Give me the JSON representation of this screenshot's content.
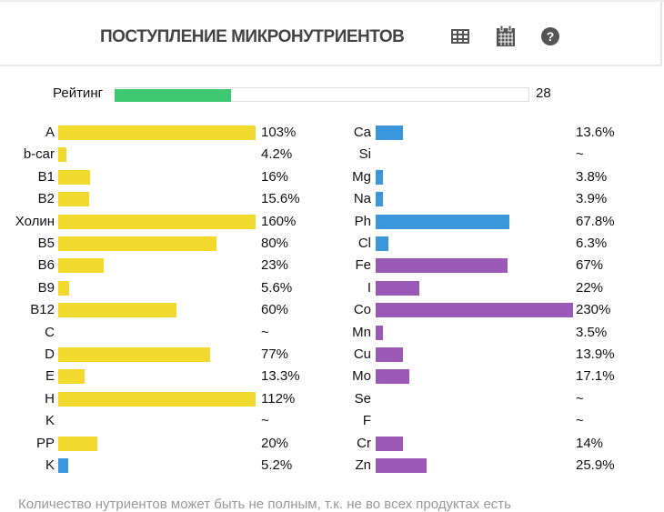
{
  "header": {
    "title": "ПОСТУПЛЕНИЕ МИКРОНУТРИЕНТОВ",
    "icons": [
      "table-icon",
      "calendar-icon",
      "help-icon"
    ]
  },
  "rating": {
    "label": "Рейтинг",
    "value": "28",
    "percent": 28,
    "color": "#3ec872"
  },
  "colors": {
    "vitamin": "#f2d92e",
    "mineral_blue": "#3a97dc",
    "mineral_purple": "#9b59b6"
  },
  "left": [
    {
      "name": "A",
      "value": "103%",
      "pct": 103,
      "color": "vitamin"
    },
    {
      "name": "b-car",
      "value": "4.2%",
      "pct": 4.2,
      "color": "vitamin"
    },
    {
      "name": "B1",
      "value": "16%",
      "pct": 16,
      "color": "vitamin"
    },
    {
      "name": "B2",
      "value": "15.6%",
      "pct": 15.6,
      "color": "vitamin"
    },
    {
      "name": "Холин",
      "value": "160%",
      "pct": 160,
      "color": "vitamin"
    },
    {
      "name": "B5",
      "value": "80%",
      "pct": 80,
      "color": "vitamin"
    },
    {
      "name": "B6",
      "value": "23%",
      "pct": 23,
      "color": "vitamin"
    },
    {
      "name": "B9",
      "value": "5.6%",
      "pct": 5.6,
      "color": "vitamin"
    },
    {
      "name": "B12",
      "value": "60%",
      "pct": 60,
      "color": "vitamin"
    },
    {
      "name": "C",
      "value": "~",
      "pct": 0,
      "color": "vitamin"
    },
    {
      "name": "D",
      "value": "77%",
      "pct": 77,
      "color": "vitamin"
    },
    {
      "name": "E",
      "value": "13.3%",
      "pct": 13.3,
      "color": "vitamin"
    },
    {
      "name": "H",
      "value": "112%",
      "pct": 112,
      "color": "vitamin"
    },
    {
      "name": "K",
      "value": "~",
      "pct": 0,
      "color": "vitamin"
    },
    {
      "name": "PP",
      "value": "20%",
      "pct": 20,
      "color": "vitamin"
    },
    {
      "name": "K",
      "value": "5.2%",
      "pct": 5.2,
      "color": "mineral_blue"
    }
  ],
  "right": [
    {
      "name": "Ca",
      "value": "13.6%",
      "pct": 13.6,
      "color": "mineral_blue"
    },
    {
      "name": "Si",
      "value": "~",
      "pct": 0,
      "color": "mineral_blue"
    },
    {
      "name": "Mg",
      "value": "3.8%",
      "pct": 3.8,
      "color": "mineral_blue"
    },
    {
      "name": "Na",
      "value": "3.9%",
      "pct": 3.9,
      "color": "mineral_blue"
    },
    {
      "name": "Ph",
      "value": "67.8%",
      "pct": 67.8,
      "color": "mineral_blue"
    },
    {
      "name": "Cl",
      "value": "6.3%",
      "pct": 6.3,
      "color": "mineral_blue"
    },
    {
      "name": "Fe",
      "value": "67%",
      "pct": 67,
      "color": "mineral_purple"
    },
    {
      "name": "I",
      "value": "22%",
      "pct": 22,
      "color": "mineral_purple"
    },
    {
      "name": "Co",
      "value": "230%",
      "pct": 230,
      "color": "mineral_purple"
    },
    {
      "name": "Mn",
      "value": "3.5%",
      "pct": 3.5,
      "color": "mineral_purple"
    },
    {
      "name": "Cu",
      "value": "13.9%",
      "pct": 13.9,
      "color": "mineral_purple"
    },
    {
      "name": "Mo",
      "value": "17.1%",
      "pct": 17.1,
      "color": "mineral_purple"
    },
    {
      "name": "Se",
      "value": "~",
      "pct": 0,
      "color": "mineral_purple"
    },
    {
      "name": "F",
      "value": "~",
      "pct": 0,
      "color": "mineral_purple"
    },
    {
      "name": "Cr",
      "value": "14%",
      "pct": 14,
      "color": "mineral_purple"
    },
    {
      "name": "Zn",
      "value": "25.9%",
      "pct": 25.9,
      "color": "mineral_purple"
    }
  ],
  "footer": "Количество нутриентов может быть не полным, т.к. не во всех продуктах есть"
}
